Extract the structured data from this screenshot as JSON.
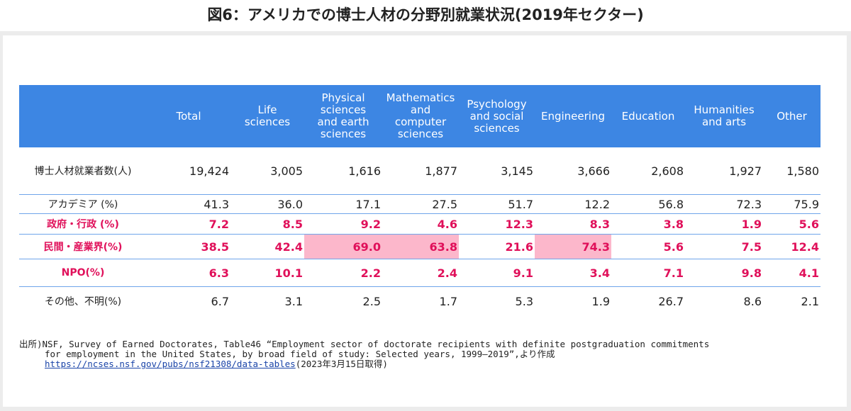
{
  "title": "図6：アメリカでの博士人材の分野別就業状況(2019年セクター)",
  "colors": {
    "header_bg": "#3d86e3",
    "header_text": "#ffffff",
    "highlight_text": "#e0105a",
    "highlight_cell": "#fcb7cb",
    "row_line": "#6fa5ea"
  },
  "chart_data": {
    "type": "table",
    "columns": [
      "Total",
      "Life\nsciences",
      "Physical\nsciences\nand earth\nsciences",
      "Mathematics\nand\ncomputer\nsciences",
      "Psychology\nand social\nsciences",
      "Engineering",
      "Education",
      "Humanities\nand arts",
      "Other"
    ],
    "rows": [
      {
        "label": "博士人材就業者数(人)",
        "values": [
          "19,424",
          "3,005",
          "1,616",
          "1,877",
          "3,145",
          "3,666",
          "2,608",
          "1,927",
          "1,580"
        ],
        "emphasis": false,
        "highlight_cols": []
      },
      {
        "label": "アカデミア (%)",
        "values": [
          "41.3",
          "36.0",
          "17.1",
          "27.5",
          "51.7",
          "12.2",
          "56.8",
          "72.3",
          "75.9"
        ],
        "emphasis": false,
        "highlight_cols": []
      },
      {
        "label": "政府・行政 (%)",
        "values": [
          "7.2",
          "8.5",
          "9.2",
          "4.6",
          "12.3",
          "8.3",
          "3.8",
          "1.9",
          "5.6"
        ],
        "emphasis": true,
        "highlight_cols": []
      },
      {
        "label": "民間・産業界(%)",
        "values": [
          "38.5",
          "42.4",
          "69.0",
          "63.8",
          "21.6",
          "74.3",
          "5.6",
          "7.5",
          "12.4"
        ],
        "emphasis": true,
        "highlight_cols": [
          2,
          3,
          5
        ]
      },
      {
        "label": "NPO(%)",
        "values": [
          "6.3",
          "10.1",
          "2.2",
          "2.4",
          "9.1",
          "3.4",
          "7.1",
          "9.8",
          "4.1"
        ],
        "emphasis": true,
        "highlight_cols": []
      },
      {
        "label": "その他、不明(%)",
        "values": [
          "6.7",
          "3.1",
          "2.5",
          "1.7",
          "5.3",
          "1.9",
          "26.7",
          "8.6",
          "2.1"
        ],
        "emphasis": false,
        "highlight_cols": []
      }
    ]
  },
  "source_note": {
    "line1": "出所)NSF, Survey of Earned Doctorates, Table46 “Employment sector of doctorate recipients with definite postgraduation commitments",
    "line2": "for employment in the United States, by broad field of study: Selected years, 1999–2019”,より作成",
    "link": "https://ncses.nsf.gov/pubs/nsf21308/data-tables",
    "link_suffix": "(2023年3月15日取得)"
  }
}
